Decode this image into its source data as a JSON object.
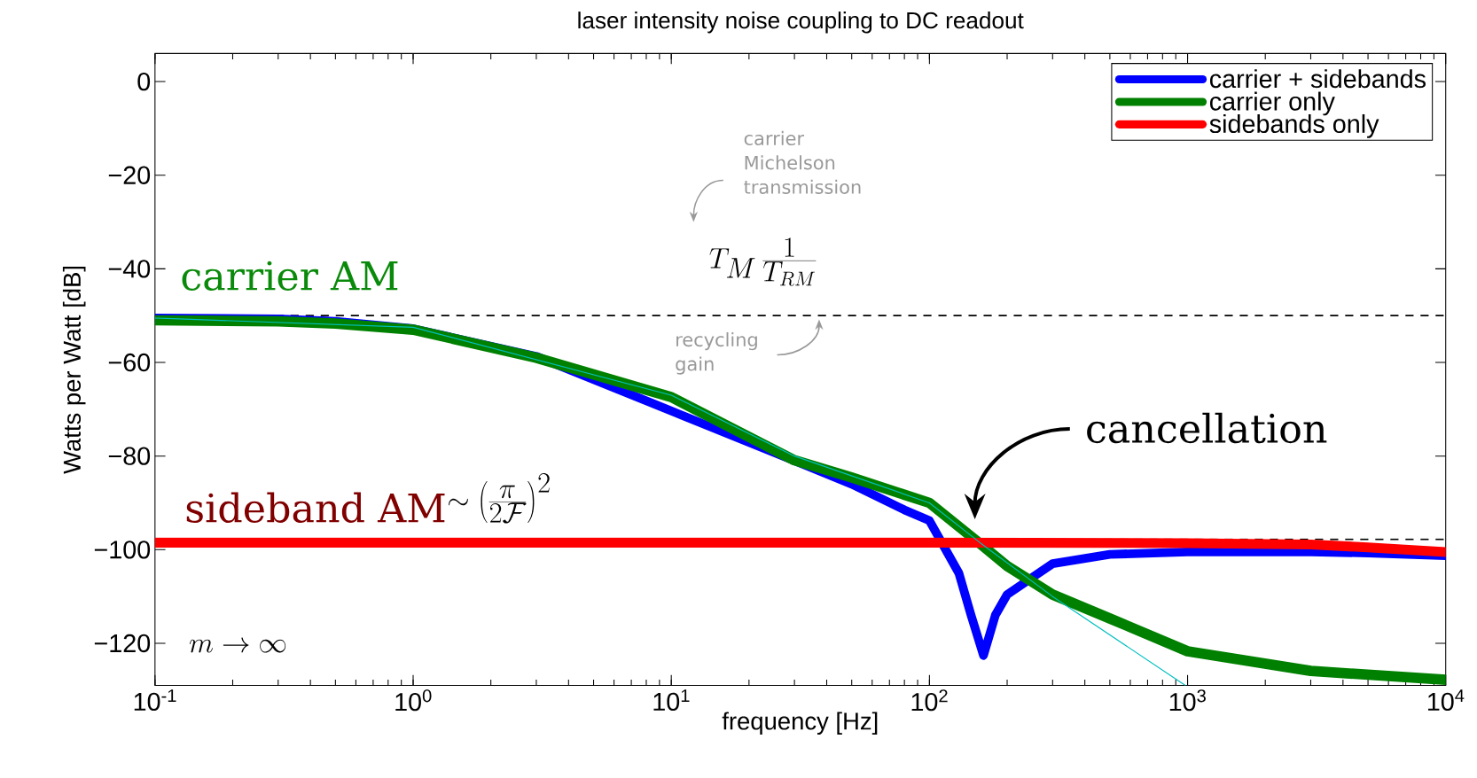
{
  "chart_data": {
    "type": "line",
    "title": "laser intensity noise coupling to DC readout",
    "xlabel": "frequency [Hz]",
    "ylabel": "Watts per Watt [dB]",
    "log": "x",
    "legend": "top right",
    "xlim": [
      0.1,
      10000
    ],
    "ylim": [
      -129,
      6
    ],
    "xticks": [
      {
        "value": 0.1,
        "label": "10$^{-1}$"
      },
      {
        "value": 1,
        "label": "10$^{0}$"
      },
      {
        "value": 10,
        "label": "10$^{1}$"
      },
      {
        "value": 100,
        "label": "10$^{2}$"
      },
      {
        "value": 1000,
        "label": "10$^{3}$"
      },
      {
        "value": 10000,
        "label": "10$^{4}$"
      }
    ],
    "yticks": [
      {
        "value": 0,
        "label": "0"
      },
      {
        "value": -20,
        "label": "−20"
      },
      {
        "value": -40,
        "label": "−40"
      },
      {
        "value": -60,
        "label": "−60"
      },
      {
        "value": -80,
        "label": "−80"
      },
      {
        "value": -100,
        "label": "−100"
      },
      {
        "value": -120,
        "label": "−120"
      }
    ],
    "series": [
      {
        "name": "carrier + sidebands",
        "color": "#0000ff",
        "x": [
          0.1,
          0.3,
          0.5,
          1,
          3,
          10,
          30,
          50,
          80,
          100,
          130,
          145,
          162,
          180,
          200,
          300,
          500,
          1000,
          3000,
          5000,
          10000
        ],
        "values": [
          -50.5,
          -50.7,
          -51.2,
          -52.8,
          -58.7,
          null,
          -81,
          -86,
          -91.5,
          -93.8,
          -105,
          -114,
          -122.6,
          -114,
          -109.6,
          -103,
          -101,
          -100.5,
          -100.5,
          -100.7,
          -101.3
        ]
      },
      {
        "name": "carrier only",
        "color": "#008000",
        "x": [
          0.1,
          0.3,
          0.5,
          1,
          3,
          10,
          30,
          50,
          100,
          157,
          200,
          300,
          500,
          1000,
          3000,
          10000
        ],
        "values": [
          -51,
          -51.2,
          -51.7,
          -53,
          -59,
          -67.4,
          -80.9,
          -84.6,
          -90,
          -98.7,
          -103.5,
          -109.6,
          -114.7,
          -121.7,
          -125.9,
          -127.8
        ]
      },
      {
        "name": "sidebands only",
        "color": "#ff0000",
        "x": [
          0.1,
          100,
          1000,
          3000,
          5000,
          10000
        ],
        "values": [
          -98.5,
          -98.5,
          -98.6,
          -98.9,
          -99.5,
          -100.5
        ]
      },
      {
        "color": "#00bfbf",
        "x": [
          0.1,
          1,
          10,
          30,
          100,
          157,
          300,
          980
        ],
        "values": [
          -50.5,
          -52.5,
          -67,
          -80,
          -90,
          -98.5,
          -110,
          -129
        ]
      }
    ],
    "ref_lines": [
      {
        "axis": "y",
        "value": -50,
        "color": "#000000",
        "line_style": "dashed"
      },
      {
        "axis": "y",
        "value": -97.8,
        "color": "#000000",
        "line_style": "dashed"
      }
    ],
    "annotations": [
      "carrier AM",
      "sideband AM",
      "\\sim\\left(\\frac{\\pi}{2\\mathcal{F}}\\right)^{2}",
      "T_M\\,\\frac{1}{T_{RM}}",
      "carrier Michelson transmission",
      "recycling gain",
      "cancellation",
      "m\\rightarrow\\infty"
    ]
  }
}
